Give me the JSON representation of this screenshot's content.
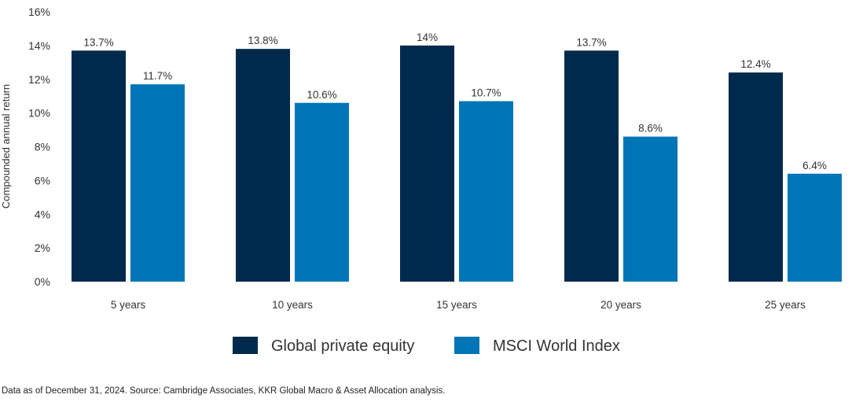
{
  "chart_data": {
    "type": "bar",
    "title": "",
    "xlabel": "",
    "ylabel": "Compounded annual return",
    "ylim": [
      0,
      16
    ],
    "yticks": [
      "0%",
      "2%",
      "4%",
      "6%",
      "8%",
      "10%",
      "12%",
      "14%",
      "16%"
    ],
    "grid": false,
    "legend_position": "bottom",
    "categories": [
      "5 years",
      "10 years",
      "15 years",
      "20 years",
      "25 years"
    ],
    "series": [
      {
        "name": "Global private equity",
        "color": "#002a4b",
        "values": [
          13.7,
          13.8,
          14,
          13.7,
          12.4
        ],
        "labels": [
          "13.7%",
          "13.8%",
          "14%",
          "13.7%",
          "12.4%"
        ]
      },
      {
        "name": "MSCI World Index",
        "color": "#0075b6",
        "values": [
          11.7,
          10.6,
          10.7,
          8.6,
          6.4
        ],
        "labels": [
          "11.7%",
          "10.6%",
          "10.7%",
          "8.6%",
          "6.4%"
        ]
      }
    ]
  },
  "footnote": "Data as of December 31, 2024. Source: Cambridge Associates, KKR Global Macro & Asset Allocation analysis."
}
